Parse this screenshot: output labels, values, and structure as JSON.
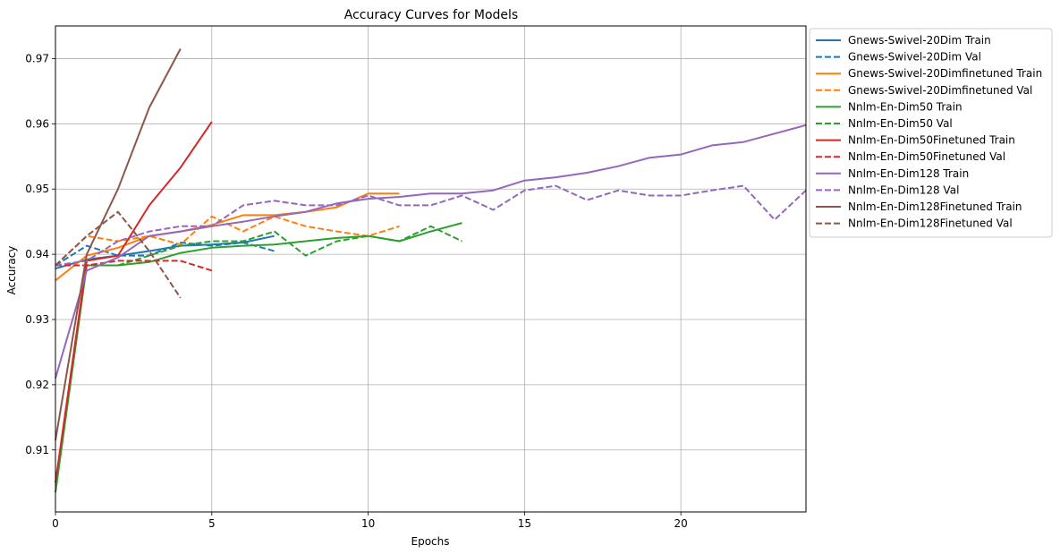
{
  "chart_data": {
    "type": "line",
    "title": "Accuracy Curves for Models",
    "xlabel": "Epochs",
    "ylabel": "Accuracy",
    "xlim": [
      0,
      24
    ],
    "ylim": [
      0.9005,
      0.975
    ],
    "xticks": [
      0,
      5,
      10,
      15,
      20
    ],
    "yticks": [
      0.91,
      0.92,
      0.93,
      0.94,
      0.95,
      0.96,
      0.97
    ],
    "grid": true,
    "legend_position": "outside-right-top",
    "series": [
      {
        "name": "Gnews-Swivel-20Dim Train",
        "color": "#1f77b4",
        "style": "solid",
        "x": [
          0,
          1,
          2,
          3,
          4,
          5,
          6,
          7
        ],
        "y": [
          0.9378,
          0.9392,
          0.9398,
          0.9405,
          0.9413,
          0.9415,
          0.9418,
          0.9428
        ]
      },
      {
        "name": "Gnews-Swivel-20Dim Val",
        "color": "#1f77b4",
        "style": "dashed",
        "x": [
          0,
          1,
          2,
          3,
          4,
          5,
          6,
          7
        ],
        "y": [
          0.9383,
          0.9413,
          0.9398,
          0.9398,
          0.9418,
          0.9413,
          0.9418,
          0.9405
        ]
      },
      {
        "name": "Gnews-Swivel-20Dimfinetuned Train",
        "color": "#ff7f0e",
        "style": "solid",
        "x": [
          0,
          1,
          2,
          3,
          4,
          5,
          6,
          7,
          8,
          9,
          10,
          11
        ],
        "y": [
          0.936,
          0.9398,
          0.941,
          0.9428,
          0.9435,
          0.9445,
          0.946,
          0.946,
          0.9465,
          0.9472,
          0.9493,
          0.9493
        ]
      },
      {
        "name": "Gnews-Swivel-20Dimfinetuned Val",
        "color": "#ff7f0e",
        "style": "dashed",
        "x": [
          0,
          1,
          2,
          3,
          4,
          5,
          6,
          7,
          8,
          9,
          10,
          11
        ],
        "y": [
          0.9383,
          0.9428,
          0.942,
          0.9428,
          0.9415,
          0.9458,
          0.9435,
          0.9458,
          0.9443,
          0.9435,
          0.9428,
          0.9443
        ]
      },
      {
        "name": "Nnlm-En-Dim50 Train",
        "color": "#2ca02c",
        "style": "solid",
        "x": [
          0,
          1,
          2,
          3,
          4,
          5,
          6,
          7,
          8,
          9,
          10,
          11,
          12,
          13
        ],
        "y": [
          0.9035,
          0.9383,
          0.9383,
          0.9388,
          0.9402,
          0.941,
          0.9413,
          0.9415,
          0.942,
          0.9425,
          0.9428,
          0.942,
          0.9435,
          0.9448
        ]
      },
      {
        "name": "Nnlm-En-Dim50 Val",
        "color": "#2ca02c",
        "style": "dashed",
        "x": [
          0,
          1,
          2,
          3,
          4,
          5,
          6,
          7,
          8,
          9,
          10,
          11,
          12,
          13
        ],
        "y": [
          0.9383,
          0.9383,
          0.9383,
          0.9398,
          0.9413,
          0.942,
          0.942,
          0.9435,
          0.9398,
          0.942,
          0.9428,
          0.942,
          0.9443,
          0.942
        ]
      },
      {
        "name": "Nnlm-En-Dim50Finetuned Train",
        "color": "#d62728",
        "style": "solid",
        "x": [
          0,
          1,
          2,
          3,
          4,
          5
        ],
        "y": [
          0.905,
          0.939,
          0.9398,
          0.9475,
          0.9533,
          0.9603
        ]
      },
      {
        "name": "Nnlm-En-Dim50Finetuned Val",
        "color": "#d62728",
        "style": "dashed",
        "x": [
          0,
          1,
          2,
          3,
          4,
          5
        ],
        "y": [
          0.9383,
          0.9383,
          0.939,
          0.939,
          0.939,
          0.9375
        ]
      },
      {
        "name": "Nnlm-En-Dim128 Train",
        "color": "#9467bd",
        "style": "solid",
        "x": [
          0,
          1,
          2,
          3,
          4,
          5,
          6,
          7,
          8,
          9,
          10,
          11,
          12,
          13,
          14,
          15,
          16,
          17,
          18,
          19,
          20,
          21,
          22,
          23,
          24
        ],
        "y": [
          0.921,
          0.9375,
          0.9395,
          0.9428,
          0.9435,
          0.9443,
          0.945,
          0.9458,
          0.9465,
          0.9478,
          0.9485,
          0.9488,
          0.9493,
          0.9493,
          0.9498,
          0.9513,
          0.9518,
          0.9525,
          0.9535,
          0.9548,
          0.9553,
          0.9567,
          0.9572,
          0.9585,
          0.9598
        ]
      },
      {
        "name": "Nnlm-En-Dim128 Val",
        "color": "#9467bd",
        "style": "dashed",
        "x": [
          0,
          1,
          2,
          3,
          4,
          5,
          6,
          7,
          8,
          9,
          10,
          11,
          12,
          13,
          14,
          15,
          16,
          17,
          18,
          19,
          20,
          21,
          22,
          23,
          24
        ],
        "y": [
          0.9383,
          0.939,
          0.942,
          0.9435,
          0.9443,
          0.9443,
          0.9475,
          0.9482,
          0.9475,
          0.9475,
          0.949,
          0.9475,
          0.9475,
          0.949,
          0.9468,
          0.9498,
          0.9505,
          0.9483,
          0.9498,
          0.949,
          0.949,
          0.9498,
          0.9505,
          0.9453,
          0.9498
        ]
      },
      {
        "name": "Nnlm-En-Dim128Finetuned Train",
        "color": "#8c564b",
        "style": "solid",
        "x": [
          0,
          1,
          2,
          3,
          4
        ],
        "y": [
          0.9115,
          0.94,
          0.95,
          0.9625,
          0.9715
        ]
      },
      {
        "name": "Nnlm-En-Dim128Finetuned Val",
        "color": "#8c564b",
        "style": "dashed",
        "x": [
          0,
          1,
          2,
          3,
          4
        ],
        "y": [
          0.9383,
          0.9428,
          0.9465,
          0.9405,
          0.9333
        ]
      }
    ]
  }
}
